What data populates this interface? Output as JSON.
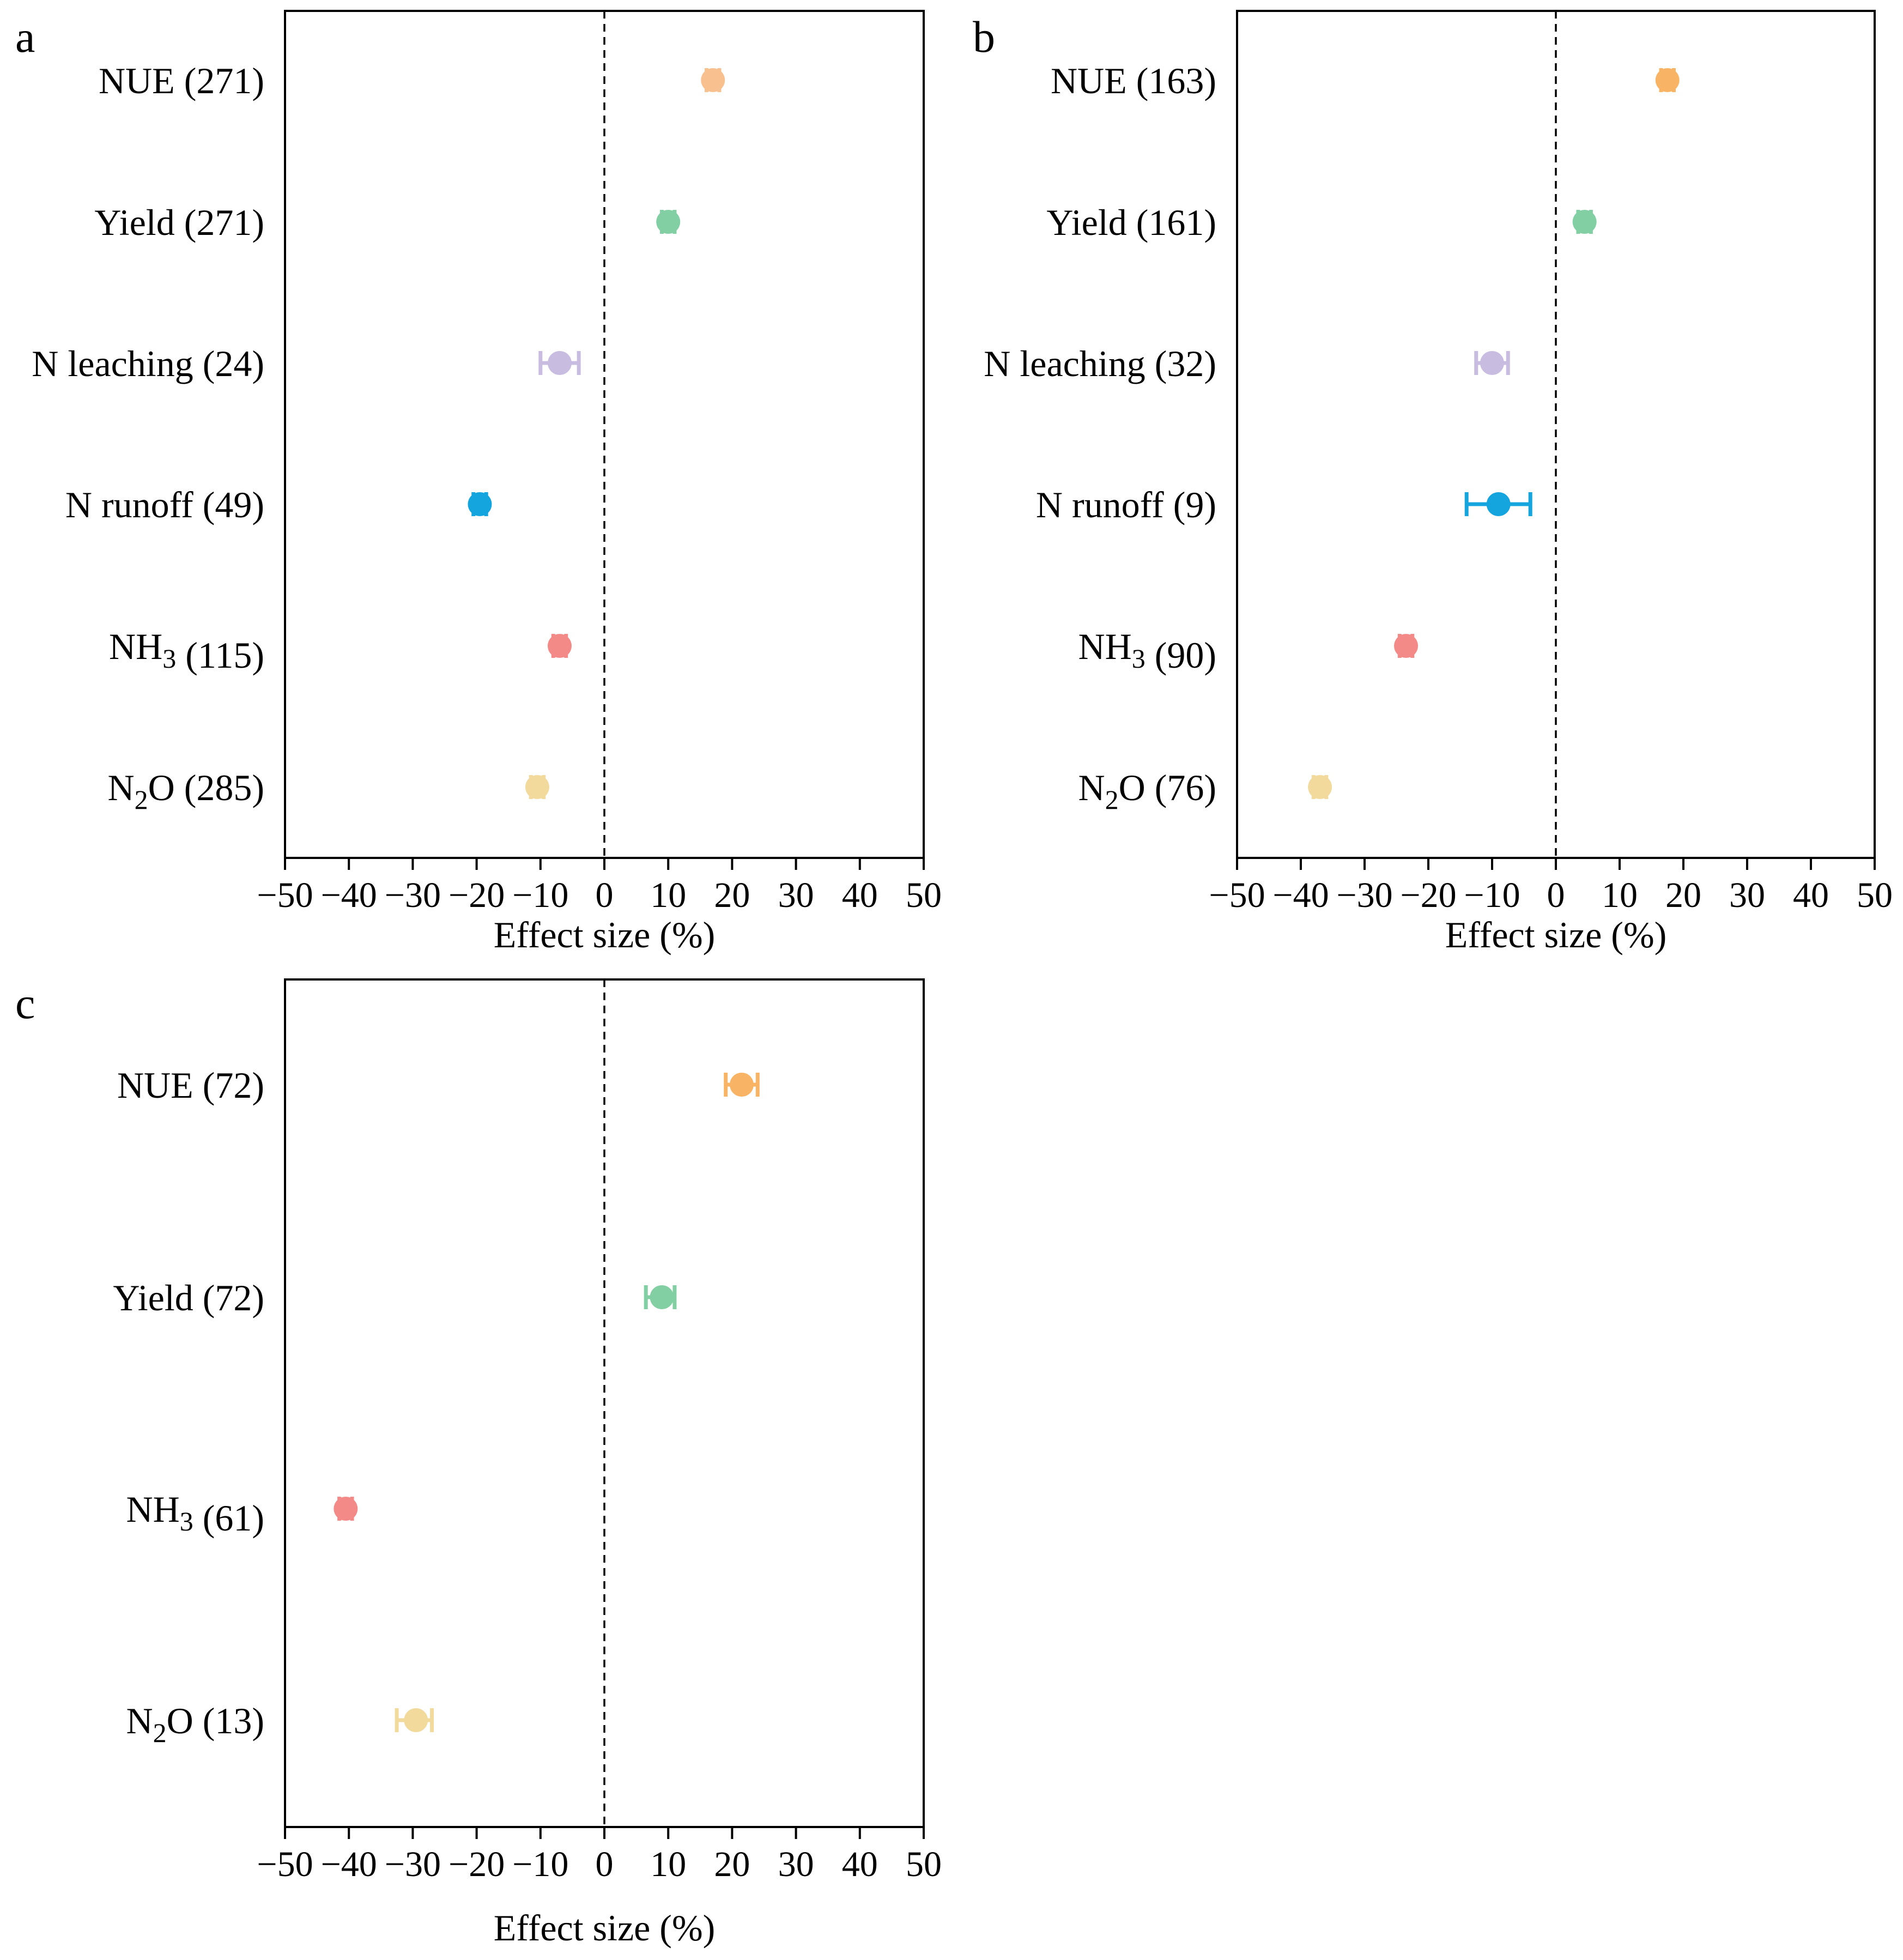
{
  "chart_data": [
    {
      "panel": "a",
      "type": "scatter",
      "xlabel": "Effect size (%)",
      "xlim": [
        -50,
        50
      ],
      "xticks": [
        -50,
        -40,
        -30,
        -20,
        -10,
        0,
        10,
        20,
        30,
        40,
        50
      ],
      "reference_line": 0,
      "points": [
        {
          "label": "NUE",
          "sub": "",
          "suffix": "",
          "n": "(271)",
          "value": 17.0,
          "ci_low": 16.0,
          "ci_high": 18.0,
          "color": "#F8C08E"
        },
        {
          "label": "Yield",
          "sub": "",
          "suffix": "",
          "n": "(271)",
          "value": 10.0,
          "ci_low": 9.0,
          "ci_high": 11.0,
          "color": "#82CFA3"
        },
        {
          "label": "N leaching",
          "sub": "",
          "suffix": "",
          "n": "(24)",
          "value": -7.0,
          "ci_low": -10.0,
          "ci_high": -4.0,
          "color": "#C8BCE0"
        },
        {
          "label": "N runoff",
          "sub": "",
          "suffix": "",
          "n": "(49)",
          "value": -19.5,
          "ci_low": -20.5,
          "ci_high": -18.5,
          "color": "#14A4DE"
        },
        {
          "label": "NH",
          "sub": "3",
          "suffix": "",
          "n": "(115)",
          "value": -7.0,
          "ci_low": -8.0,
          "ci_high": -6.0,
          "color": "#F48A88"
        },
        {
          "label": "N",
          "sub": "2",
          "suffix": "O",
          "n": "(285)",
          "value": -10.5,
          "ci_low": -11.5,
          "ci_high": -9.5,
          "color": "#F2D99C"
        }
      ]
    },
    {
      "panel": "b",
      "type": "scatter",
      "xlabel": "Effect size (%)",
      "xlim": [
        -50,
        50
      ],
      "xticks": [
        -50,
        -40,
        -30,
        -20,
        -10,
        0,
        10,
        20,
        30,
        40,
        50
      ],
      "reference_line": 0,
      "points": [
        {
          "label": "NUE",
          "sub": "",
          "suffix": "",
          "n": "(163)",
          "value": 17.5,
          "ci_low": 16.5,
          "ci_high": 18.5,
          "color": "#F8B464"
        },
        {
          "label": "Yield",
          "sub": "",
          "suffix": "",
          "n": "(161)",
          "value": 4.5,
          "ci_low": 3.5,
          "ci_high": 5.5,
          "color": "#82CFA3"
        },
        {
          "label": "N leaching",
          "sub": "",
          "suffix": "",
          "n": "(32)",
          "value": -10.0,
          "ci_low": -12.5,
          "ci_high": -7.5,
          "color": "#C8BCE0"
        },
        {
          "label": "N runoff",
          "sub": "",
          "suffix": "",
          "n": "(9)",
          "value": -9.0,
          "ci_low": -14.0,
          "ci_high": -4.0,
          "color": "#14A4DE"
        },
        {
          "label": "NH",
          "sub": "3",
          "suffix": "",
          "n": "(90)",
          "value": -23.5,
          "ci_low": -24.5,
          "ci_high": -22.5,
          "color": "#F48A88"
        },
        {
          "label": "N",
          "sub": "2",
          "suffix": "O",
          "n": "(76)",
          "value": -37.0,
          "ci_low": -38.0,
          "ci_high": -36.0,
          "color": "#F2D99C"
        }
      ]
    },
    {
      "panel": "c",
      "type": "scatter",
      "xlabel": "Effect size (%)",
      "xlim": [
        -50,
        50
      ],
      "xticks": [
        -50,
        -40,
        -30,
        -20,
        -10,
        0,
        10,
        20,
        30,
        40,
        50
      ],
      "reference_line": 0,
      "points": [
        {
          "label": "NUE",
          "sub": "",
          "suffix": "",
          "n": "(72)",
          "value": 21.5,
          "ci_low": 19.0,
          "ci_high": 24.0,
          "color": "#F8B464"
        },
        {
          "label": "Yield",
          "sub": "",
          "suffix": "",
          "n": "(72)",
          "value": 9.0,
          "ci_low": 6.5,
          "ci_high": 11.0,
          "color": "#82CFA3"
        },
        {
          "label": "NH",
          "sub": "3",
          "suffix": "",
          "n": "(61)",
          "value": -40.5,
          "ci_low": -41.5,
          "ci_high": -39.5,
          "color": "#F48A88"
        },
        {
          "label": "N",
          "sub": "2",
          "suffix": "O",
          "n": "(13)",
          "value": -29.5,
          "ci_low": -32.5,
          "ci_high": -27.0,
          "color": "#F2D99C"
        }
      ]
    }
  ]
}
